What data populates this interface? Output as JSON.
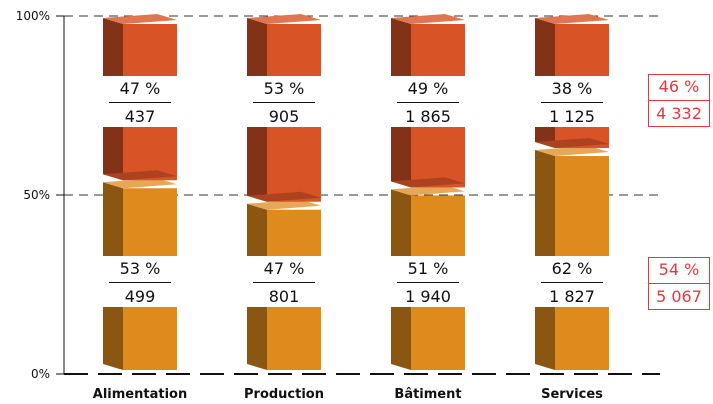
{
  "chart_data": {
    "type": "bar",
    "stacked": true,
    "categories": [
      "Alimentation",
      "Production",
      "Bâtiment",
      "Services"
    ],
    "y_tick_labels": [
      "0%",
      "50%",
      "100%"
    ],
    "ylim": [
      0,
      100
    ],
    "series": [
      {
        "values": [
          53,
          47,
          51,
          62
        ],
        "labels_pct": [
          "53 %",
          "47 %",
          "51 %",
          "62 %"
        ],
        "labels_count": [
          "499",
          "801",
          "1 940",
          "1 827"
        ],
        "color": "#de8a1d"
      },
      {
        "values": [
          47,
          53,
          49,
          38
        ],
        "labels_pct": [
          "47 %",
          "53 %",
          "49 %",
          "38 %"
        ],
        "labels_count": [
          "437",
          "905",
          "1 865",
          "1 125"
        ],
        "color": "#d85326"
      }
    ],
    "totals": [
      {
        "pct": "54 %",
        "count": "5 067"
      },
      {
        "pct": "46 %",
        "count": "4 332"
      }
    ],
    "grid": "dashed-horizontal"
  }
}
